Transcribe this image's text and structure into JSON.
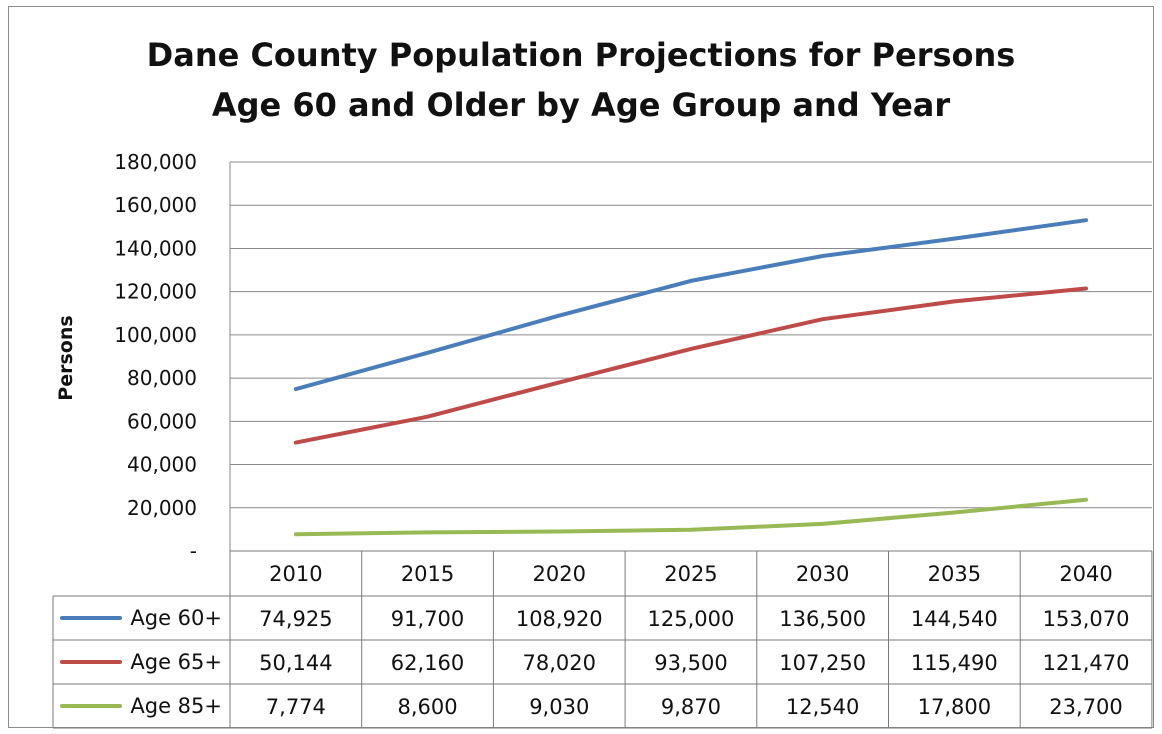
{
  "chart_data": {
    "type": "line",
    "title_line1": "Dane County Population Projections for Persons",
    "title_line2": "Age 60 and Older by Age Group and Year",
    "ylabel": "Persons",
    "xlabel": "",
    "ylim": [
      0,
      180000
    ],
    "yticks": [
      {
        "value": 0,
        "label": "-"
      },
      {
        "value": 20000,
        "label": "20,000"
      },
      {
        "value": 40000,
        "label": "40,000"
      },
      {
        "value": 60000,
        "label": "60,000"
      },
      {
        "value": 80000,
        "label": "80,000"
      },
      {
        "value": 100000,
        "label": "100,000"
      },
      {
        "value": 120000,
        "label": "120,000"
      },
      {
        "value": 140000,
        "label": "140,000"
      },
      {
        "value": 160000,
        "label": "160,000"
      },
      {
        "value": 180000,
        "label": "180,000"
      }
    ],
    "grid": true,
    "legend": "data-table",
    "categories": [
      "2010",
      "2015",
      "2020",
      "2025",
      "2030",
      "2035",
      "2040"
    ],
    "series": [
      {
        "name": "Age 60+",
        "color": "#4a7ebb",
        "values": [
          74925,
          91700,
          108920,
          125000,
          136500,
          144540,
          153070
        ],
        "labels": [
          "74,925",
          "91,700",
          "108,920",
          "125,000",
          "136,500",
          "144,540",
          "153,070"
        ]
      },
      {
        "name": "Age 65+",
        "color": "#be4b48",
        "values": [
          50144,
          62160,
          78020,
          93500,
          107250,
          115490,
          121470
        ],
        "labels": [
          "50,144",
          "62,160",
          "78,020",
          "93,500",
          "107,250",
          "115,490",
          "121,470"
        ]
      },
      {
        "name": "Age 85+",
        "color": "#98b954",
        "values": [
          7774,
          8600,
          9030,
          9870,
          12540,
          17800,
          23700
        ],
        "labels": [
          "7,774",
          "8,600",
          "9,030",
          "9,870",
          "12,540",
          "17,800",
          "23,700"
        ]
      }
    ]
  }
}
